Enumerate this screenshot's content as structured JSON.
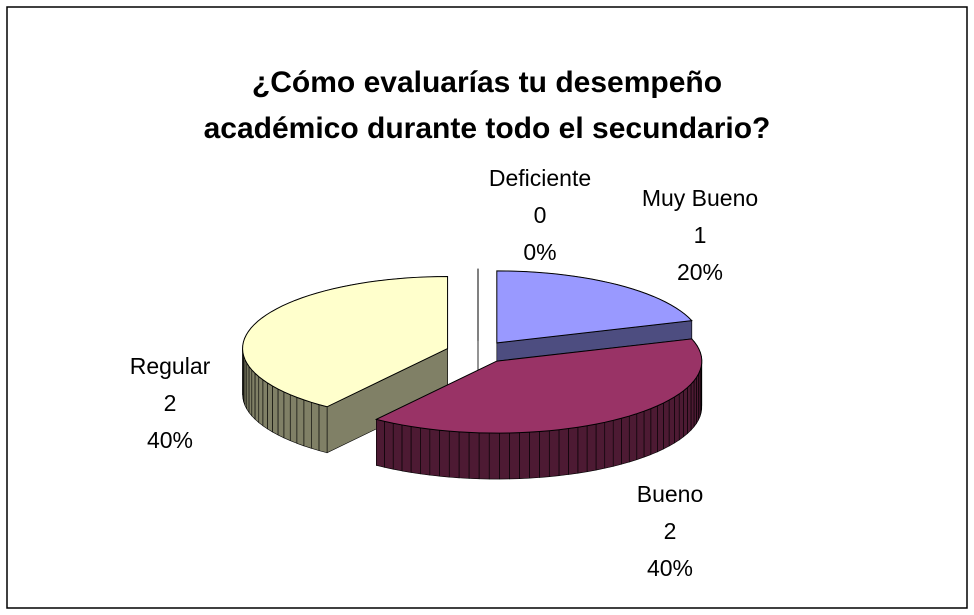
{
  "chart_data": {
    "type": "pie3d",
    "title": [
      "¿Cómo evaluarías tu desempeño",
      "académico durante todo el secundario?"
    ],
    "categories": [
      "Muy Bueno",
      "Bueno",
      "Regular",
      "Deficiente"
    ],
    "values": [
      1,
      2,
      2,
      0
    ],
    "percent_labels": [
      "20%",
      "40%",
      "40%",
      "0%"
    ],
    "colors": [
      "#9999ff",
      "#993366",
      "#ffffcc",
      "#ccffff"
    ]
  }
}
